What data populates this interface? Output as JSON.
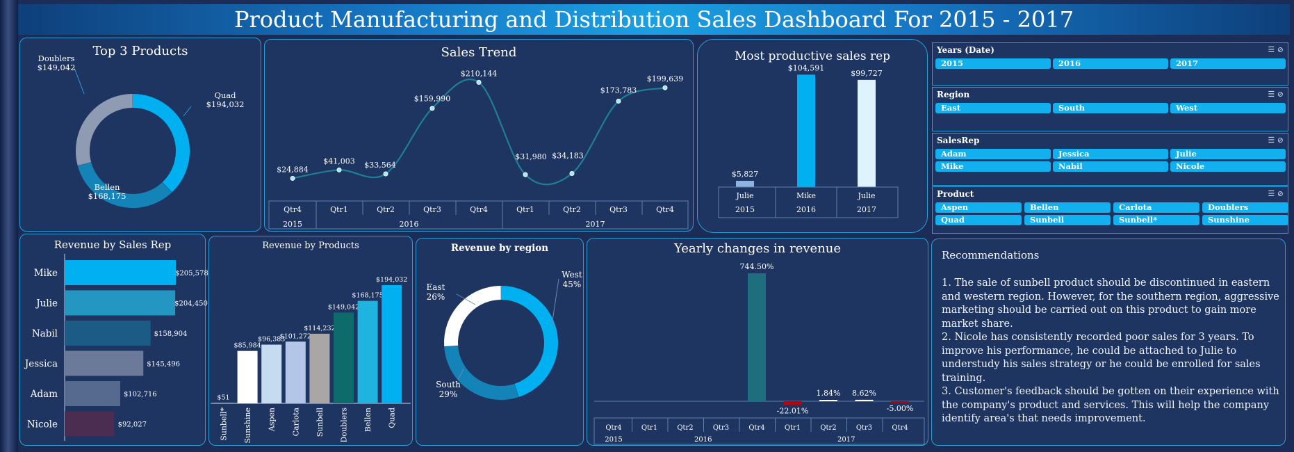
{
  "title": "Product Manufacturing and Distribution Sales Dashboard For 2015 - 2017",
  "colors": {
    "cyan": "#00b0f0",
    "teal": "#1e6e7e",
    "red": "#c00000",
    "panel": "#1e3461",
    "border": "#2a9fd8"
  },
  "top3": {
    "title": "Top 3 Products",
    "chart_data": {
      "type": "pie",
      "donut": true,
      "title": "Top 3 Products",
      "categories": [
        "Quad",
        "Bellen",
        "Doublers"
      ],
      "values": [
        194032,
        168175,
        149042
      ],
      "labels": [
        "$194,032",
        "$168,175",
        "$149,042"
      ],
      "colors": [
        "#00b0f0",
        "#1484b8",
        "#8f9bb3"
      ]
    }
  },
  "trend": {
    "title": "Sales Trend",
    "chart_data": {
      "type": "line",
      "title": "Sales Trend",
      "x": [
        "Qtr4",
        "Qtr1",
        "Qtr2",
        "Qtr3",
        "Qtr4",
        "Qtr1",
        "Qtr2",
        "Qtr3",
        "Qtr4"
      ],
      "years": [
        {
          "label": "2015",
          "span": 1
        },
        {
          "label": "2016",
          "span": 4
        },
        {
          "label": "2017",
          "span": 4
        }
      ],
      "values": [
        24884,
        41003,
        33564,
        159990,
        210144,
        31980,
        34183,
        173783,
        199639
      ],
      "labels": [
        "$24,884",
        "$41,003",
        "$33,564",
        "$159,990",
        "$210,144",
        "$31,980",
        "$34,183",
        "$173,783",
        "$199,639"
      ]
    }
  },
  "rep": {
    "title": "Most productive sales rep",
    "chart_data": {
      "type": "bar",
      "title": "Most productive sales rep",
      "categories": [
        "Julie",
        "Mike",
        "Julie"
      ],
      "years": [
        "2015",
        "2016",
        "2017"
      ],
      "values": [
        5827,
        104591,
        99727
      ],
      "labels": [
        "$5,827",
        "$104,591",
        "$99,727"
      ],
      "colors": [
        "#8db4e2",
        "#00b0f0",
        "#dff3fc"
      ]
    }
  },
  "slicers": [
    {
      "title": "Years (Date)",
      "items": [
        "2015",
        "2016",
        "2017"
      ],
      "cols": 3
    },
    {
      "title": "Region",
      "items": [
        "East",
        "South",
        "West"
      ],
      "cols": 3
    },
    {
      "title": "SalesRep",
      "items": [
        "Adam",
        "Jessica",
        "Julie",
        "Mike",
        "Nabil",
        "Nicole"
      ],
      "cols": 3
    },
    {
      "title": "Product",
      "items": [
        "Aspen",
        "Bellen",
        "Carlota",
        "Doublers",
        "Quad",
        "Sunbell",
        "Sunbell*",
        "Sunshine"
      ],
      "cols": 4
    }
  ],
  "revRep": {
    "title": "Revenue by Sales Rep",
    "chart_data": {
      "type": "bar",
      "orientation": "horizontal",
      "title": "Revenue by Sales Rep",
      "categories": [
        "Mike",
        "Julie",
        "Nabil",
        "Jessica",
        "Adam",
        "Nicole"
      ],
      "values": [
        205578,
        204450,
        158904,
        145496,
        102716,
        92027
      ],
      "labels": [
        "$205,578",
        "$204,450",
        "$158,904",
        "$145,496",
        "$102,716",
        "$92,027"
      ],
      "colors": [
        "#00b0f0",
        "#2496c2",
        "#1c5b86",
        "#6b7a99",
        "#56698f",
        "#4b2d52"
      ]
    }
  },
  "revProd": {
    "title": "Revenue by Products",
    "chart_data": {
      "type": "bar",
      "title": "Revenue by Products",
      "categories": [
        "Sunbell*",
        "Sunshine",
        "Aspen",
        "Carlota",
        "Sunbell",
        "Doublers",
        "Bellen",
        "Quad"
      ],
      "values": [
        51,
        85984,
        96383,
        101272,
        114232,
        149042,
        168175,
        194032
      ],
      "labels": [
        "$51",
        "$85,984",
        "$96,383",
        "$101,272",
        "$114,232",
        "$149,042",
        "$168,175",
        "$194,032"
      ],
      "colors": [
        "#ffffff",
        "#ffffff",
        "#c5dcf0",
        "#b4c6e7",
        "#aaa6a6",
        "#0e6b6b",
        "#1fb4e0",
        "#00b0f0"
      ]
    }
  },
  "region": {
    "title": "Revenue by region",
    "chart_data": {
      "type": "pie",
      "donut": true,
      "title": "Revenue by region",
      "categories": [
        "West",
        "South",
        "East"
      ],
      "values": [
        45,
        29,
        26
      ],
      "labels": [
        "45%",
        "29%",
        "26%"
      ],
      "colors": [
        "#00b0f0",
        "#1484b8",
        "#ffffff"
      ]
    }
  },
  "yearly": {
    "title": "Yearly changes in revenue",
    "chart_data": {
      "type": "bar",
      "title": "Yearly changes in revenue",
      "x": [
        "Qtr4",
        "Qtr1",
        "Qtr2",
        "Qtr3",
        "Qtr4",
        "Qtr1",
        "Qtr2",
        "Qtr3",
        "Qtr4"
      ],
      "years": [
        {
          "label": "2015",
          "span": 1
        },
        {
          "label": "2016",
          "span": 4
        },
        {
          "label": "2017",
          "span": 4
        }
      ],
      "values": [
        null,
        null,
        null,
        null,
        744.5,
        -22.01,
        1.84,
        8.62,
        -5.0
      ],
      "labels": [
        "",
        "",
        "",
        "",
        "744.50%",
        "-22.01%",
        "1.84%",
        "8.62%",
        "-5.00%"
      ]
    }
  },
  "recommendations": {
    "title": "Recommendations",
    "items": [
      "1. The sale of sunbell product should be discontinued in eastern and western region. However, for the southern region, aggressive marketing should be carried out on this product to gain more market share.",
      "2. Nicole has consistently recorded poor sales for 3 years. To improve his performance, he could be attached to Julie to understudy his sales strategy or he could be enrolled for sales training.",
      "3. Customer's feedback should be gotten on their experience with the company's product and services. This will help the company identify area's that needs improvement."
    ]
  }
}
